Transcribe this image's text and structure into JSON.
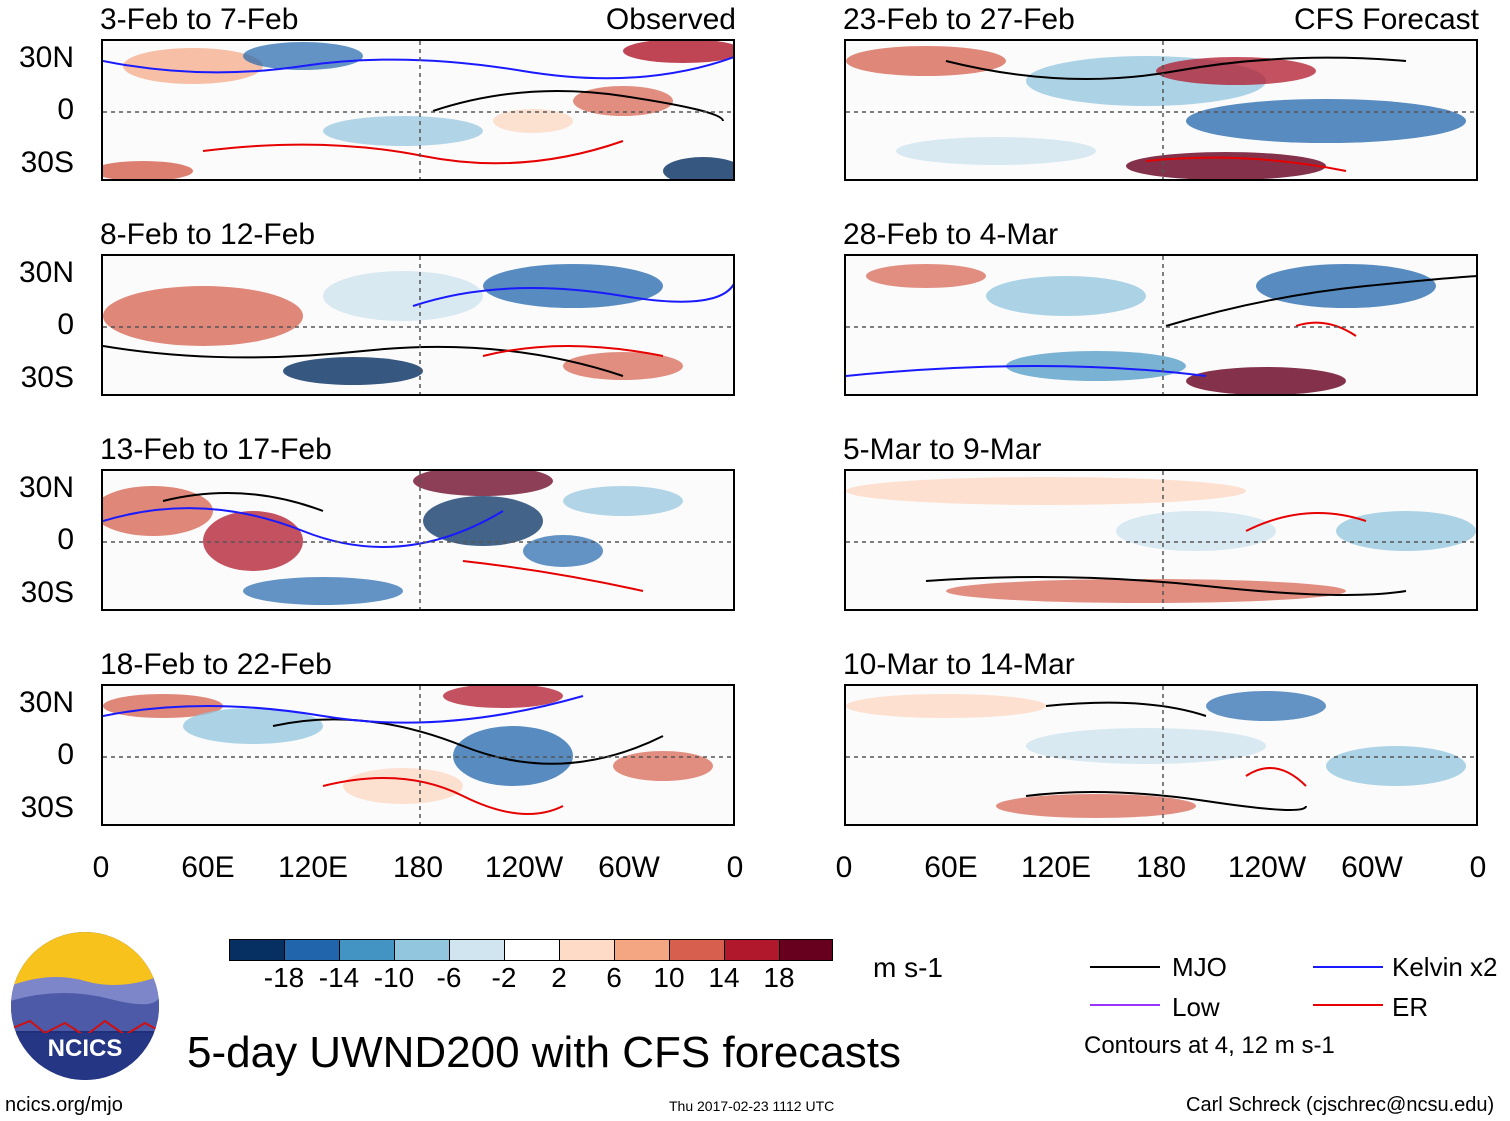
{
  "panels": {
    "left": [
      {
        "title": "3-Feb to 7-Feb",
        "tag": "Observed"
      },
      {
        "title": "8-Feb to 12-Feb",
        "tag": ""
      },
      {
        "title": "13-Feb to 17-Feb",
        "tag": ""
      },
      {
        "title": "18-Feb to 22-Feb",
        "tag": ""
      }
    ],
    "right": [
      {
        "title": "23-Feb to 27-Feb",
        "tag": "CFS Forecast"
      },
      {
        "title": "28-Feb to 4-Mar",
        "tag": ""
      },
      {
        "title": "5-Mar to 9-Mar",
        "tag": ""
      },
      {
        "title": "10-Mar to 14-Mar",
        "tag": ""
      }
    ]
  },
  "axes": {
    "lat_labels": [
      "30N",
      "0",
      "30S"
    ],
    "lon_labels": [
      "0",
      "60E",
      "120E",
      "180",
      "120W",
      "60W",
      "0"
    ]
  },
  "colorbar": {
    "unit": "m s-1",
    "ticks": [
      "-18",
      "-14",
      "-10",
      "-6",
      "-2",
      "2",
      "6",
      "10",
      "14",
      "18"
    ],
    "colors": [
      "#053061",
      "#2166ac",
      "#4393c3",
      "#92c5de",
      "#d1e5f0",
      "#ffffff",
      "#fddbc7",
      "#f4a582",
      "#d6604d",
      "#b2182b",
      "#67001f"
    ]
  },
  "legend": {
    "items": [
      {
        "label": "MJO",
        "color": "#000000"
      },
      {
        "label": "Kelvin x2",
        "color": "#1a1aff"
      },
      {
        "label": "Low",
        "color": "#9933ff"
      },
      {
        "label": "ER",
        "color": "#e60000"
      }
    ],
    "note": "Contours at 4, 12 m s-1"
  },
  "logo": {
    "text": "NCICS"
  },
  "title": "5-day UWND200 with CFS forecasts",
  "footer": {
    "left": "ncics.org/mjo",
    "center": "Thu 2017-02-23 1112 UTC",
    "right": "Carl Schreck (cjschrec@ncsu.edu)"
  }
}
